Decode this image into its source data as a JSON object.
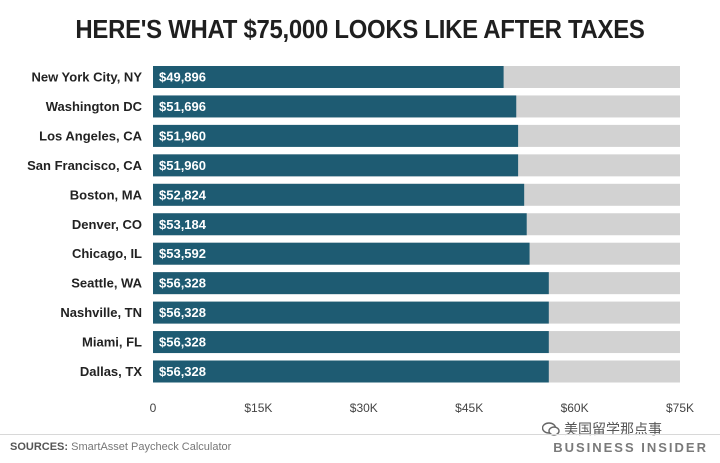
{
  "title": "HERE'S WHAT $75,000 LOOKS LIKE AFTER TAXES",
  "sources_label": "SOURCES:",
  "sources_text": "SmartAsset Paycheck Calculator",
  "brand": "BUSINESS INSIDER",
  "watermark": "美国留学那点事",
  "colors": {
    "bar": "#1e5b72",
    "track": "#d2d2d2"
  },
  "chart_data": {
    "type": "bar",
    "orientation": "horizontal",
    "total": 75000,
    "categories": [
      "New York City, NY",
      "Washington DC",
      "Los Angeles, CA",
      "San Francisco, CA",
      "Boston, MA",
      "Denver, CO",
      "Chicago, IL",
      "Seattle, WA",
      "Nashville, TN",
      "Miami, FL",
      "Dallas, TX"
    ],
    "values": [
      49896,
      51696,
      51960,
      51960,
      52824,
      53184,
      53592,
      56328,
      56328,
      56328,
      56328
    ],
    "value_labels": [
      "$49,896",
      "$51,696",
      "$51,960",
      "$51,960",
      "$52,824",
      "$53,184",
      "$53,592",
      "$56,328",
      "$56,328",
      "$56,328",
      "$56,328"
    ],
    "xlim": [
      0,
      75000
    ],
    "xticks": [
      0,
      15000,
      30000,
      45000,
      60000,
      75000
    ],
    "xtick_labels": [
      "0",
      "$15K",
      "$30K",
      "$45K",
      "$60K",
      "$75K"
    ],
    "grid": false
  }
}
